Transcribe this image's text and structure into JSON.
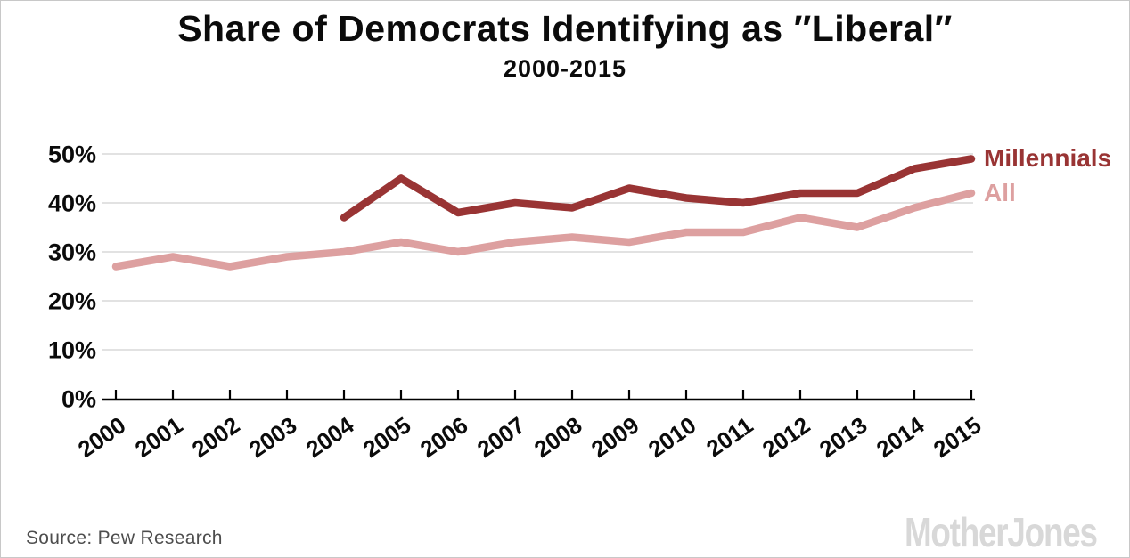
{
  "header": {
    "title": "Share of Democrats Identifying as ″Liberal″",
    "subtitle": "2000-2015"
  },
  "footer": {
    "source_label": "Source: Pew Research",
    "brand": "MotherJones"
  },
  "colors": {
    "millennials": "#993434",
    "all": "#dda0a0",
    "gridline": "#d9d9d9",
    "axis": "#000000",
    "tick_label": "#0b0b0b",
    "source_text": "#4d4d4d",
    "brand_gray": "#d8d8d8",
    "page_border": "#c8c8c8"
  },
  "chart_data": {
    "type": "line",
    "title": "Share of Democrats Identifying as ″Liberal″",
    "subtitle": "2000-2015",
    "x": [
      2000,
      2001,
      2002,
      2003,
      2004,
      2005,
      2006,
      2007,
      2008,
      2009,
      2010,
      2011,
      2012,
      2013,
      2014,
      2015
    ],
    "series": [
      {
        "name": "Millennials",
        "color": "#993434",
        "values": [
          null,
          null,
          null,
          null,
          37,
          45,
          38,
          40,
          39,
          43,
          41,
          40,
          42,
          42,
          47,
          49
        ]
      },
      {
        "name": "All",
        "color": "#dda0a0",
        "values": [
          27,
          29,
          27,
          29,
          30,
          32,
          30,
          32,
          33,
          32,
          34,
          34,
          37,
          35,
          39,
          42
        ]
      }
    ],
    "ylim": [
      0,
      50
    ],
    "yticks": [
      0,
      10,
      20,
      30,
      40,
      50
    ],
    "ytick_labels": [
      "0%",
      "10%",
      "20%",
      "30%",
      "40%",
      "50%"
    ],
    "xtick_labels": [
      "2000",
      "2001",
      "2002",
      "2003",
      "2004",
      "2005",
      "2006",
      "2007",
      "2008",
      "2009",
      "2010",
      "2011",
      "2012",
      "2013",
      "2014",
      "2015"
    ],
    "grid": "horizontal",
    "legend_position": "right-of-line-ends",
    "legend": [
      "Millennials",
      "All"
    ]
  }
}
